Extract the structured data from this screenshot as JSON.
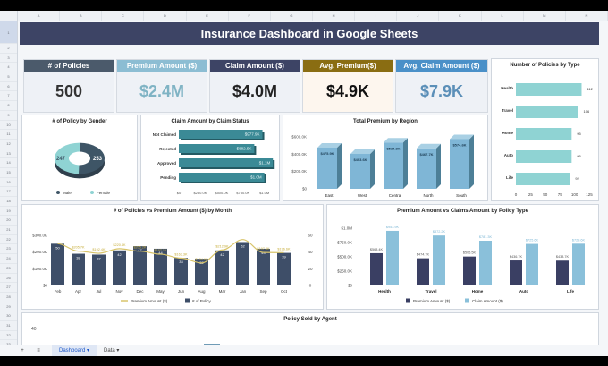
{
  "spreadsheet": {
    "column_headers": [
      "A",
      "B",
      "C",
      "D",
      "E",
      "F",
      "G",
      "H",
      "I",
      "J",
      "K",
      "L",
      "M",
      "N"
    ],
    "row_headers": [
      "1",
      "2",
      "3",
      "4",
      "5",
      "6",
      "7",
      "8",
      "9",
      "10",
      "11",
      "12",
      "13",
      "14",
      "15",
      "16",
      "17",
      "18",
      "19",
      "20",
      "21",
      "22",
      "23",
      "24",
      "25",
      "26",
      "27",
      "28",
      "29",
      "30",
      "31",
      "32",
      "33",
      "34"
    ],
    "sheet_tabs": [
      {
        "label": "Dashboard",
        "active": true
      },
      {
        "label": "Data",
        "active": false
      }
    ],
    "add_sheet_icon": "+",
    "all_sheets_icon": "≡",
    "tab_menu_icon": "▾"
  },
  "dashboard": {
    "title": "Insurance Dashboard in Google Sheets",
    "kpis": [
      {
        "label": "# of Policies",
        "value": "500",
        "head_color": "#4b5a6b",
        "value_color": "#333333",
        "bg": "#eef1f6"
      },
      {
        "label": "Premium Amount ($)",
        "value": "$2.4M",
        "head_color": "#8cbdd3",
        "value_color": "#7fb3c4",
        "bg": "#eef1f6"
      },
      {
        "label": "Claim Amount ($)",
        "value": "$4.0M",
        "head_color": "#3d4465",
        "value_color": "#222222",
        "bg": "#eef1f6"
      },
      {
        "label": "Avg. Premium($)",
        "value": "$4.9K",
        "head_color": "#8a6d12",
        "value_color": "#111111",
        "bg": "#fdf6ee"
      },
      {
        "label": "Avg. Claim Amount ($)",
        "value": "$7.9K",
        "head_color": "#4a90c8",
        "value_color": "#5b8fb8",
        "bg": "#eef1f6"
      }
    ]
  },
  "chart_data": [
    {
      "type": "bar",
      "title": "Number of Policies by Type",
      "orientation": "horizontal",
      "categories": [
        "Health",
        "Travel",
        "Home",
        "Auto",
        "Life"
      ],
      "values": [
        112,
        106,
        95,
        95,
        92
      ],
      "xlim": [
        0,
        125
      ],
      "xticks": [
        "0",
        "25",
        "50",
        "75",
        "100",
        "125"
      ],
      "color": "#8fd3d3"
    },
    {
      "type": "pie",
      "title": "# of Policy by Gender",
      "categories": [
        "Male",
        "Female"
      ],
      "values": [
        253,
        247
      ],
      "colors": [
        "#3e5566",
        "#8fd3d3"
      ],
      "legend_position": "bottom"
    },
    {
      "type": "bar",
      "title": "Claim Amount by Claim Status",
      "orientation": "horizontal",
      "categories": [
        "Not Claimed",
        "Rejected",
        "Approved",
        "Pending"
      ],
      "values": [
        977900,
        882500,
        1100000,
        1000000
      ],
      "labels": [
        "$977.9K",
        "$882.5K",
        "$1.1M",
        "$1.0M"
      ],
      "xticks": [
        "$0",
        "$250.0K",
        "$500.0K",
        "$750.0K",
        "$1.0M"
      ],
      "color": "#3b8a96"
    },
    {
      "type": "bar",
      "title": "Total Premium by Region",
      "categories": [
        "East",
        "West",
        "Central",
        "North",
        "South"
      ],
      "values": [
        475900,
        403600,
        534800,
        467700,
        574600
      ],
      "labels": [
        "$475.9K",
        "$403.6K",
        "$534.8K",
        "$467.7K",
        "$574.6K"
      ],
      "yticks": [
        "$0",
        "$200.0K",
        "$400.0K",
        "$600.0K"
      ],
      "ylim": [
        0,
        600000
      ],
      "color": "#7fb6d6"
    },
    {
      "type": "bar",
      "title": "# of Policies vs Premium Amount ($) by Month",
      "categories": [
        "Feb",
        "Apr",
        "Jul",
        "Nov",
        "Dec",
        "May",
        "Jun",
        "Aug",
        "Mar",
        "Jan",
        "Sep",
        "Oct"
      ],
      "series": [
        {
          "name": "# of Policy",
          "type": "bar",
          "axis": "right",
          "values": [
            50,
            38,
            37,
            42,
            47,
            44,
            33,
            32,
            42,
            52,
            44,
            39
          ],
          "color": "#3e4e68"
        },
        {
          "name": "Premium Amount ($)",
          "type": "line",
          "axis": "left",
          "values": [
            250000,
            205700,
            192400,
            220400,
            205200,
            187100,
            163300,
            134600,
            212900,
            275000,
            197400,
            196600
          ],
          "labels": [
            "",
            "$205.7K",
            "$192.4K",
            "$220.4K",
            "$205.2K",
            "$187.1K",
            "$163.3K",
            "$134.6K",
            "$212.9K",
            "",
            "$197.4K",
            "$196.6K"
          ],
          "color": "#d8c46a"
        }
      ],
      "yticks_left": [
        "$0",
        "$100.0K",
        "$200.0K",
        "$300.0K"
      ],
      "yticks_right": [
        "0",
        "20",
        "40",
        "60"
      ],
      "legend_position": "bottom"
    },
    {
      "type": "bar",
      "title": "Premium Amount vs Claims Amount by Policy Type",
      "categories": [
        "Health",
        "Travel",
        "Home",
        "Auto",
        "Life"
      ],
      "series": [
        {
          "name": "Premium Amount ($)",
          "values": [
            563400,
            474700,
            505500,
            436700,
            433700
          ],
          "labels": [
            "$563.4K",
            "$474.7K",
            "$505.5K",
            "$436.7K",
            "$433.7K"
          ],
          "color": "#3a3f63"
        },
        {
          "name": "Claim Amount ($)",
          "values": [
            953900,
            872200,
            781300,
            725600,
            729600
          ],
          "labels": [
            "$953.9K",
            "$872.2K",
            "$781.3K",
            "$725.6K",
            "$729.6K"
          ],
          "color": "#8ac0da"
        }
      ],
      "yticks": [
        "$0",
        "$250.0K",
        "$500.0K",
        "$750.0K",
        "$1.0M"
      ],
      "ylim": [
        0,
        1000000
      ],
      "legend_position": "bottom"
    },
    {
      "type": "bar",
      "title": "Policy Sold by Agent",
      "yticks": [
        "40"
      ],
      "categories": [],
      "values": []
    }
  ]
}
